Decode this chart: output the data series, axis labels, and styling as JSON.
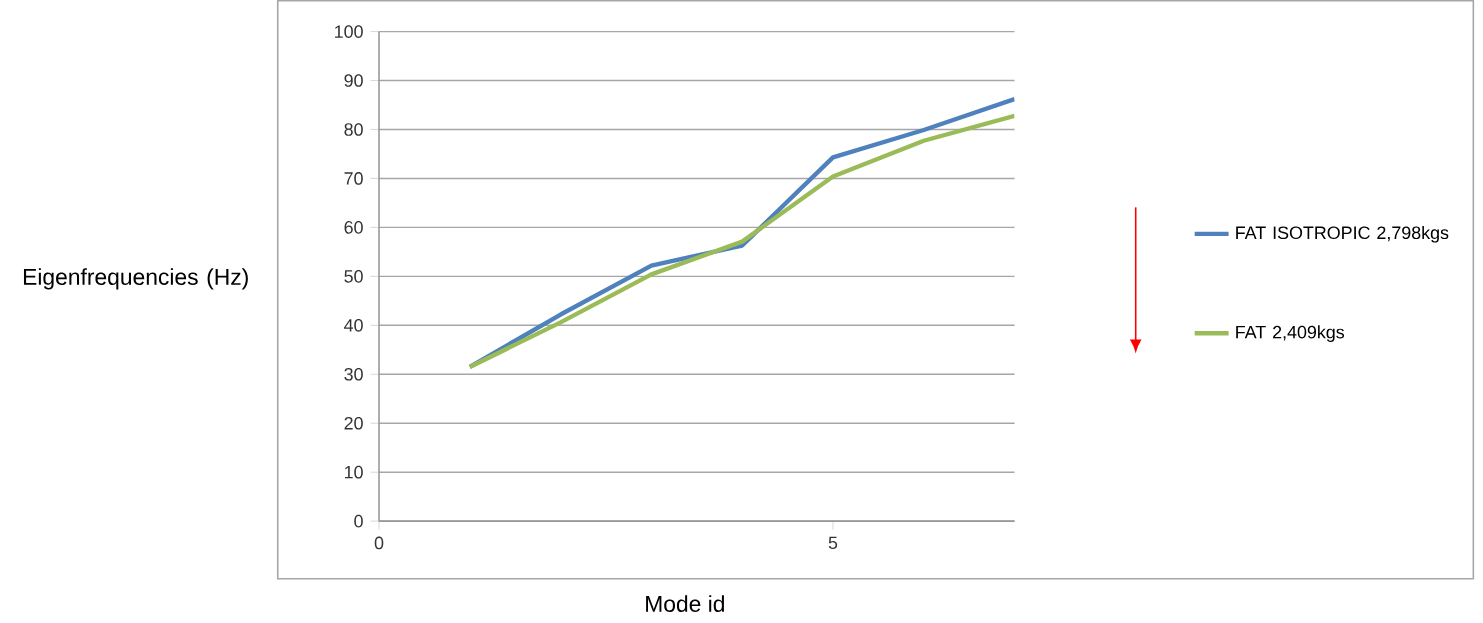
{
  "chart_data": {
    "type": "line",
    "xlabel": "Mode id",
    "ylabel": "Eigenfrequencies (Hz)",
    "x": [
      1,
      2,
      3,
      4,
      5,
      6,
      7
    ],
    "series": [
      {
        "name": "FAT ISOTROPIC 2,798kgs",
        "color": "#4f81bd",
        "values": [
          31.5,
          42.2,
          52.2,
          56.3,
          74.3,
          79.9,
          86.2
        ]
      },
      {
        "name": "FAT 2,409kgs",
        "color": "#9bbb59",
        "values": [
          31.5,
          40.6,
          50.4,
          57.1,
          70.4,
          77.7,
          82.8
        ]
      }
    ],
    "xlim": [
      0,
      7
    ],
    "xticks": [
      0,
      5
    ],
    "ylim": [
      0,
      100
    ],
    "yticks": [
      0,
      10,
      20,
      30,
      40,
      50,
      60,
      70,
      80,
      90,
      100
    ],
    "grid": "y",
    "legend": "right",
    "marker": "none",
    "line_style": "solid"
  }
}
